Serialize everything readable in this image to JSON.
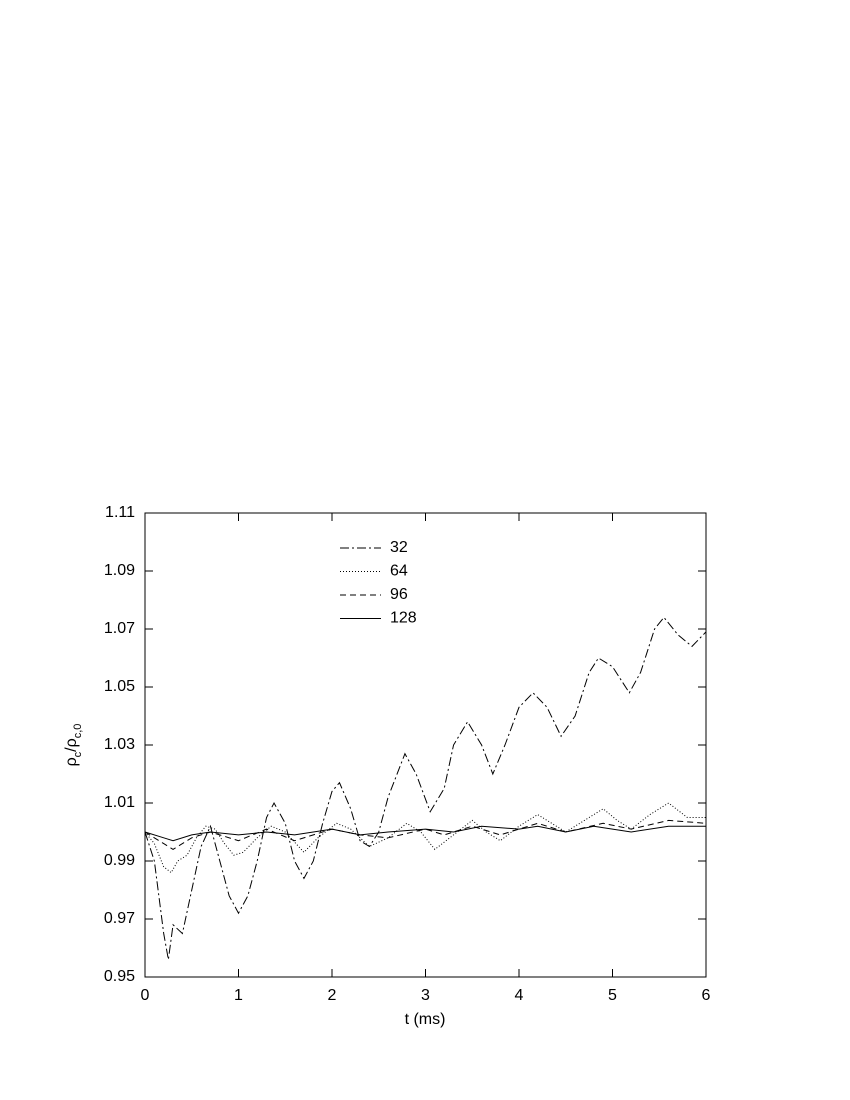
{
  "chart_data": {
    "type": "line",
    "xlabel": "t (ms)",
    "ylabel_parts": [
      "ρ",
      "c",
      "/ρ",
      "c,0"
    ],
    "xlim": [
      0,
      6
    ],
    "xticks": [
      0,
      1,
      2,
      3,
      4,
      5,
      6
    ],
    "ylim": [
      0.95,
      1.11
    ],
    "yticks": [
      0.95,
      0.97,
      0.99,
      1.01,
      1.03,
      1.05,
      1.07,
      1.09,
      1.11
    ],
    "legend": "top-center",
    "series": [
      {
        "name": "32",
        "color": "#000000",
        "dash": "9 3 2 3",
        "x": [
          0,
          0.1,
          0.2,
          0.25,
          0.3,
          0.4,
          0.5,
          0.6,
          0.7,
          0.8,
          0.9,
          1.0,
          1.1,
          1.2,
          1.3,
          1.38,
          1.5,
          1.6,
          1.7,
          1.8,
          1.9,
          2.0,
          2.08,
          2.2,
          2.3,
          2.4,
          2.5,
          2.6,
          2.78,
          2.9,
          3.05,
          3.2,
          3.3,
          3.45,
          3.6,
          3.72,
          3.85,
          4.0,
          4.15,
          4.3,
          4.45,
          4.6,
          4.75,
          4.85,
          5.0,
          5.18,
          5.3,
          5.45,
          5.55,
          5.7,
          5.85,
          6.0
        ],
        "values": [
          1.0,
          0.99,
          0.965,
          0.956,
          0.968,
          0.965,
          0.98,
          0.995,
          1.002,
          0.99,
          0.978,
          0.972,
          0.978,
          0.99,
          1.005,
          1.01,
          1.003,
          0.99,
          0.984,
          0.99,
          1.003,
          1.014,
          1.017,
          1.008,
          0.997,
          0.995,
          1.0,
          1.012,
          1.027,
          1.02,
          1.007,
          1.015,
          1.03,
          1.038,
          1.03,
          1.02,
          1.03,
          1.043,
          1.048,
          1.043,
          1.033,
          1.04,
          1.055,
          1.06,
          1.057,
          1.048,
          1.055,
          1.07,
          1.074,
          1.068,
          1.064,
          1.069
        ]
      },
      {
        "name": "64",
        "color": "#000000",
        "dash": "1 2",
        "x": [
          0,
          0.1,
          0.2,
          0.28,
          0.35,
          0.45,
          0.55,
          0.65,
          0.75,
          0.85,
          0.95,
          1.05,
          1.2,
          1.35,
          1.5,
          1.7,
          1.85,
          2.05,
          2.2,
          2.4,
          2.6,
          2.8,
          2.95,
          3.1,
          3.3,
          3.5,
          3.65,
          3.8,
          4.0,
          4.2,
          4.35,
          4.5,
          4.7,
          4.9,
          5.05,
          5.2,
          5.4,
          5.6,
          5.8,
          6.0
        ],
        "values": [
          1.0,
          0.996,
          0.988,
          0.986,
          0.99,
          0.992,
          0.998,
          1.002,
          1.001,
          0.996,
          0.992,
          0.993,
          0.998,
          1.002,
          1.0,
          0.993,
          0.998,
          1.003,
          1.001,
          0.995,
          0.998,
          1.003,
          1.0,
          0.994,
          0.999,
          1.004,
          1.0,
          0.997,
          1.002,
          1.006,
          1.003,
          1.0,
          1.004,
          1.008,
          1.004,
          1.001,
          1.006,
          1.01,
          1.005,
          1.005
        ]
      },
      {
        "name": "96",
        "color": "#000000",
        "dash": "6 4",
        "x": [
          0,
          0.2,
          0.3,
          0.5,
          0.7,
          1.0,
          1.3,
          1.6,
          2.0,
          2.3,
          2.6,
          3.0,
          3.2,
          3.5,
          3.8,
          4.2,
          4.5,
          4.9,
          5.2,
          5.6,
          6.0
        ],
        "values": [
          1.0,
          0.996,
          0.994,
          0.998,
          1.0,
          0.997,
          1.001,
          0.997,
          1.001,
          0.999,
          0.998,
          1.001,
          0.999,
          1.002,
          0.999,
          1.003,
          1.0,
          1.003,
          1.001,
          1.004,
          1.003
        ]
      },
      {
        "name": "128",
        "color": "#000000",
        "dash": "none",
        "x": [
          0,
          0.2,
          0.3,
          0.5,
          0.7,
          1.0,
          1.3,
          1.6,
          2.0,
          2.3,
          2.6,
          3.0,
          3.3,
          3.6,
          4.0,
          4.2,
          4.5,
          4.8,
          5.2,
          5.6,
          6.0
        ],
        "values": [
          1.0,
          0.998,
          0.997,
          0.999,
          1.0,
          0.999,
          1.0,
          0.999,
          1.001,
          0.999,
          1.0,
          1.001,
          1.0,
          1.002,
          1.001,
          1.002,
          1.0,
          1.002,
          1.0,
          1.002,
          1.002
        ]
      }
    ]
  }
}
